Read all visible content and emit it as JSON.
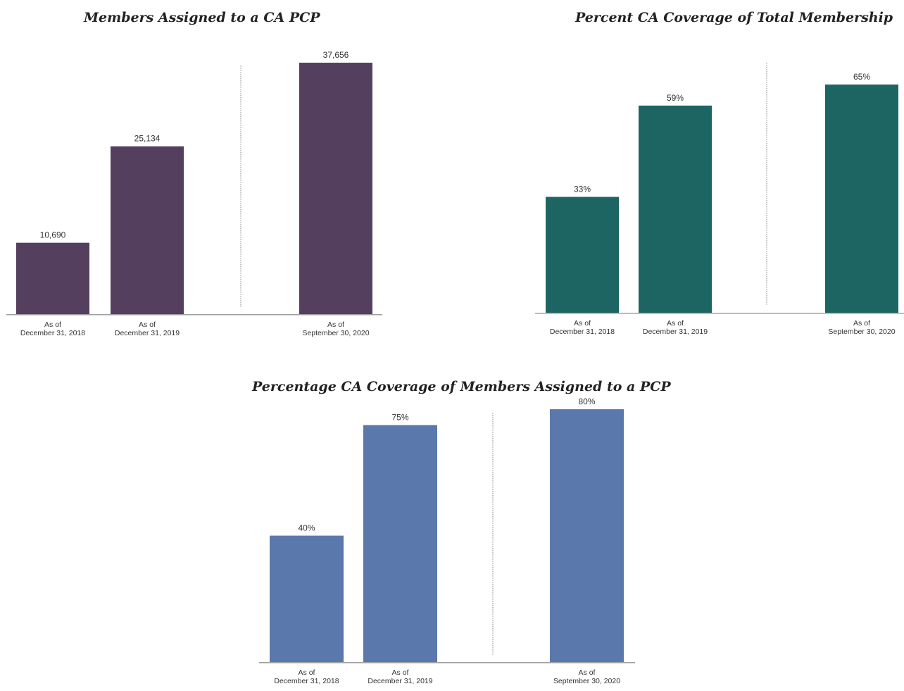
{
  "chart_data": [
    {
      "type": "bar",
      "title": "Members Assigned to a CA PCP",
      "categories": [
        [
          "As of",
          "December 31, 2018"
        ],
        [
          "As of",
          "December 31, 2019"
        ],
        [
          "As of",
          "September 30, 2020"
        ]
      ],
      "values": [
        10690,
        25134,
        37656
      ],
      "value_labels": [
        "10,690",
        "25,134",
        "37,656"
      ],
      "ylim": [
        0,
        37656
      ],
      "bar_color": "#553f5f",
      "separator": "dotted vertical line between 2nd and 3rd bar",
      "grid": false,
      "legend": "none"
    },
    {
      "type": "bar",
      "title": "Percent CA Coverage of Total Membership",
      "categories": [
        [
          "As of",
          "December 31, 2018"
        ],
        [
          "As of",
          "December 31, 2019"
        ],
        [
          "As of",
          "September 30, 2020"
        ]
      ],
      "values": [
        33,
        59,
        65
      ],
      "value_labels": [
        "33%",
        "59%",
        "65%"
      ],
      "ylim": [
        0,
        65
      ],
      "bar_color": "#1d6562",
      "separator": "dotted vertical line between 2nd and 3rd bar",
      "grid": false,
      "legend": "none"
    },
    {
      "type": "bar",
      "title": "Percentage CA Coverage of Members Assigned to a PCP",
      "categories": [
        [
          "As of",
          "December 31, 2018"
        ],
        [
          "As of",
          "December 31, 2019"
        ],
        [
          "As of",
          "September 30, 2020"
        ]
      ],
      "values": [
        40,
        75,
        80
      ],
      "value_labels": [
        "40%",
        "75%",
        "80%"
      ],
      "ylim": [
        0,
        80
      ],
      "bar_color": "#5b78ad",
      "separator": "dotted vertical line between 2nd and 3rd bar",
      "grid": false,
      "legend": "none"
    }
  ],
  "colors": {
    "axis": "#a0a0a0",
    "separator": "#9a9a9a",
    "text": "#333333"
  }
}
